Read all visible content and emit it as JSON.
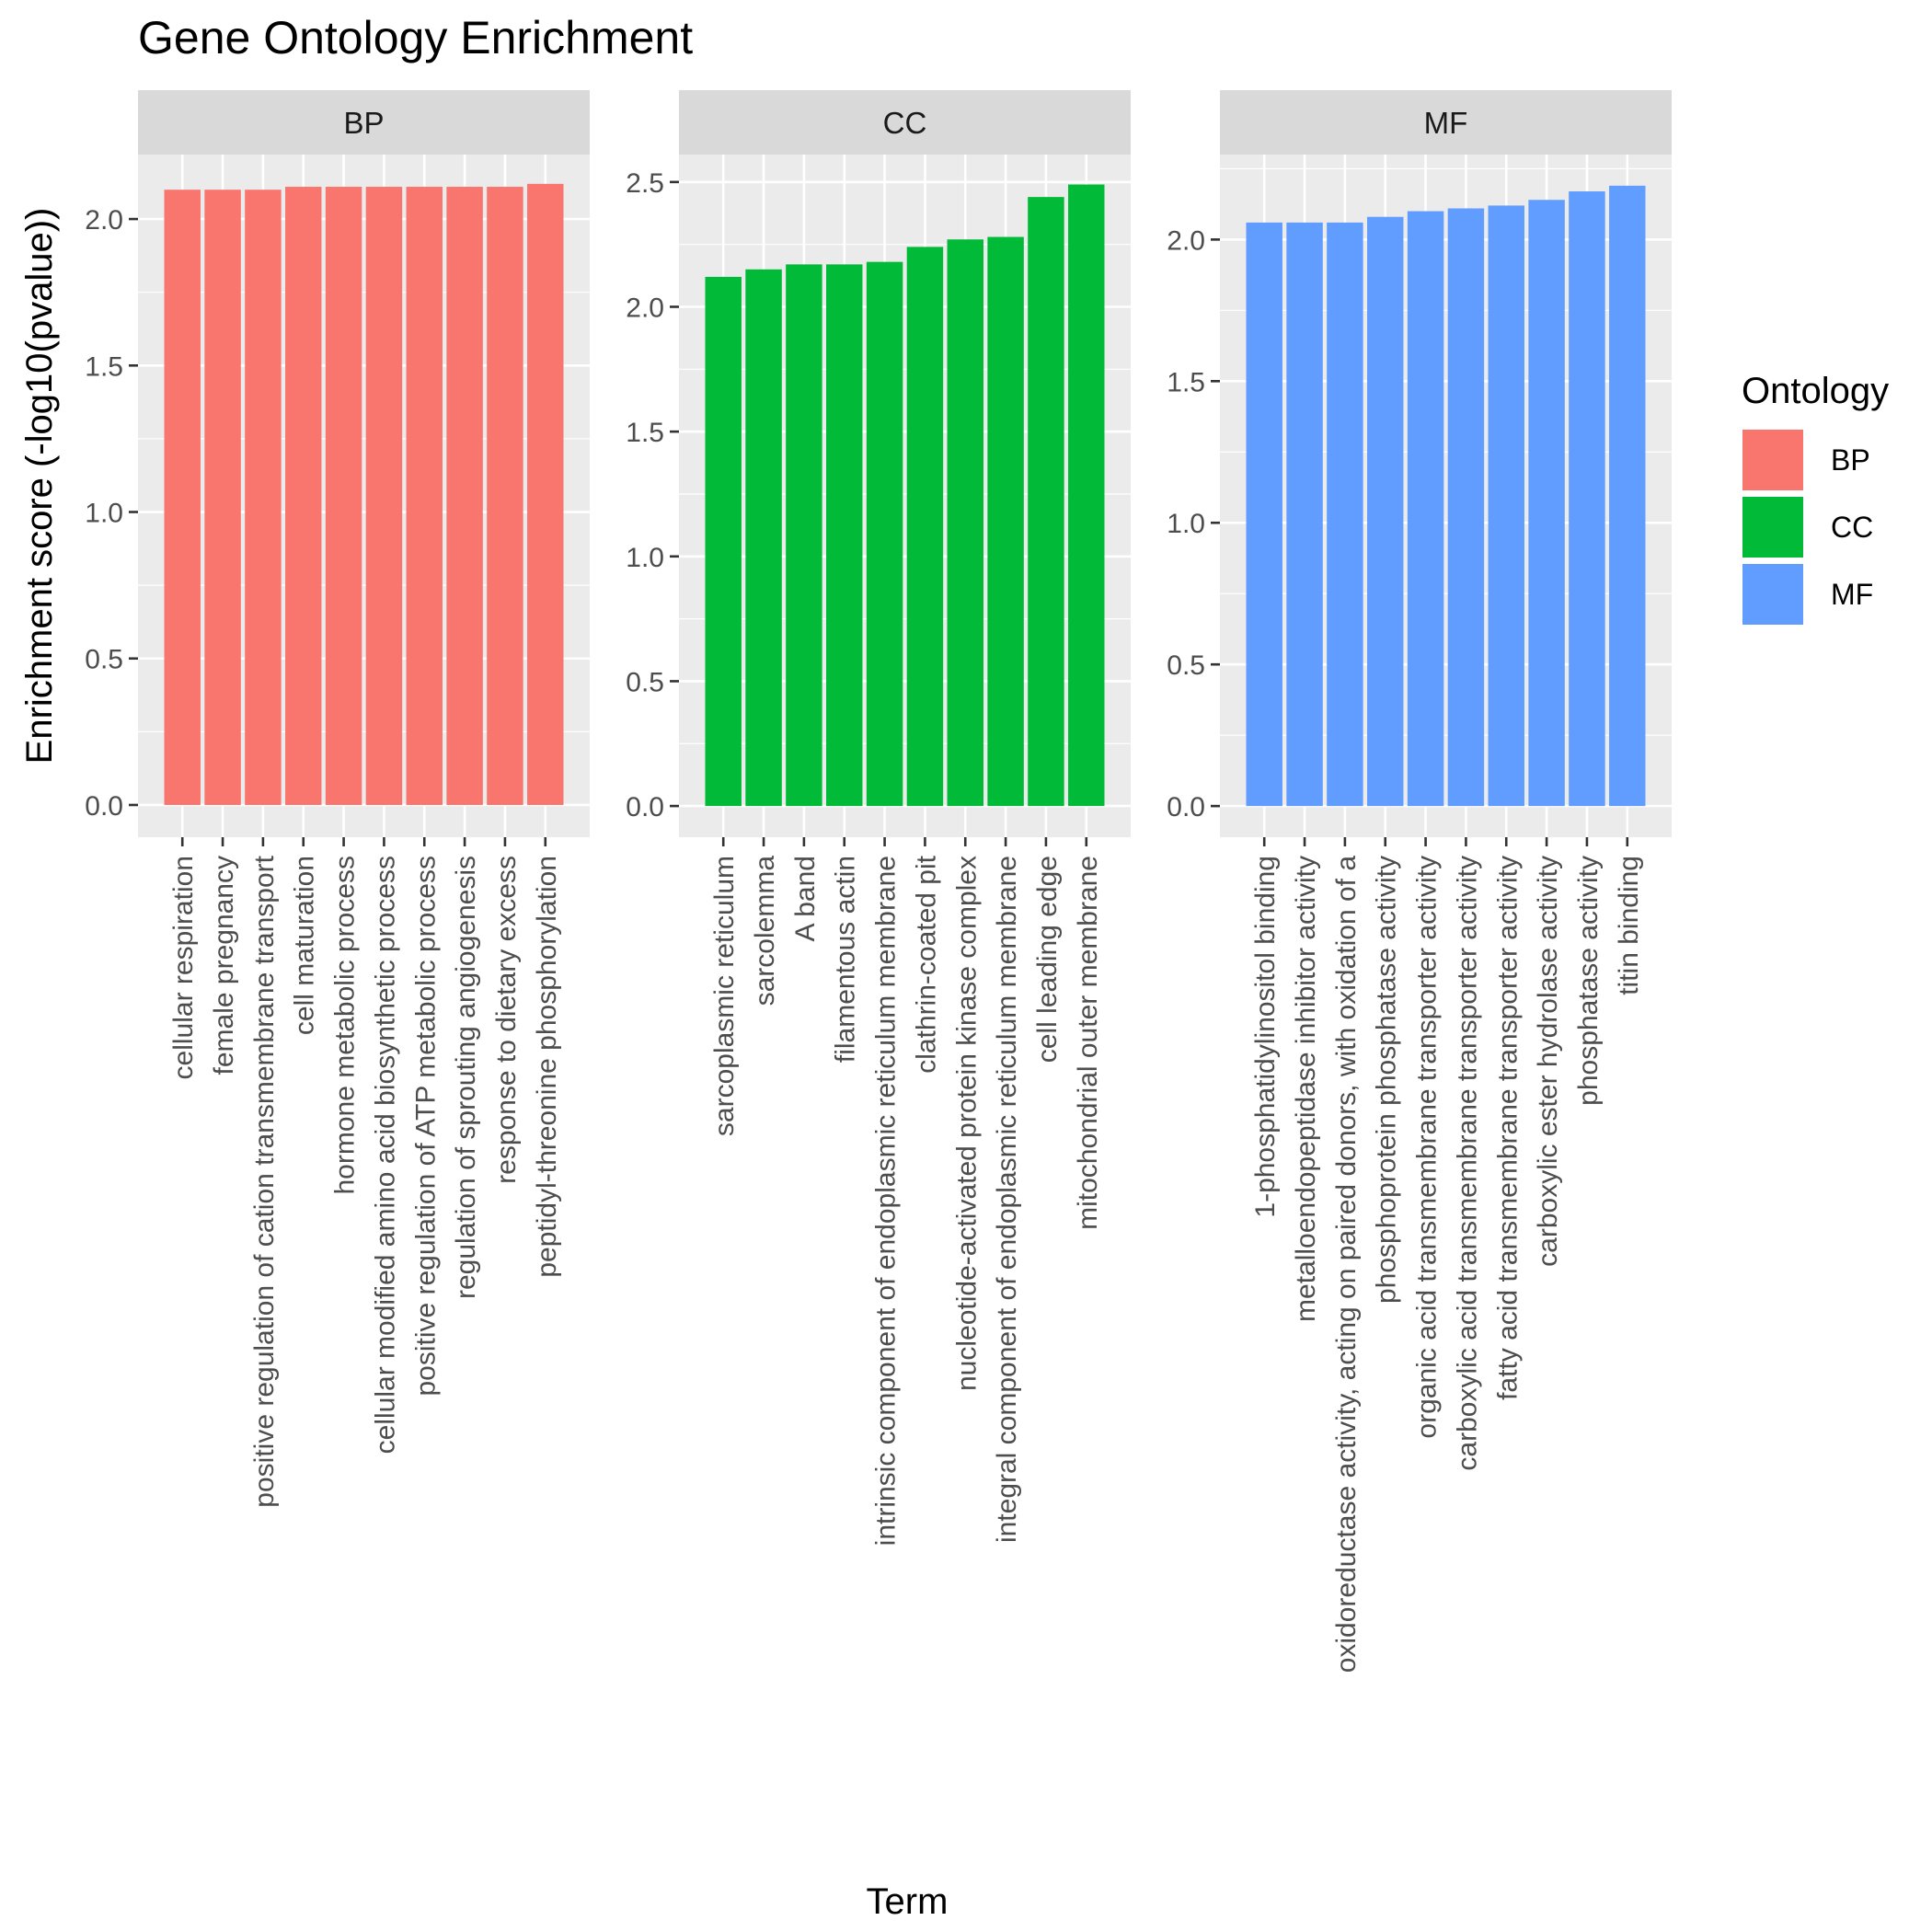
{
  "chart_data": {
    "type": "bar",
    "title": "Gene Ontology Enrichment",
    "xlabel": "Term",
    "ylabel": "Enrichment score (-log10(pvalue))",
    "legend": {
      "title": "Ontology",
      "placement": "right",
      "entries": [
        {
          "label": "BP",
          "color": "#F8766D"
        },
        {
          "label": "CC",
          "color": "#00BA38"
        },
        {
          "label": "MF",
          "color": "#619CFF"
        }
      ]
    },
    "grid": true,
    "panels": [
      {
        "facet": "BP",
        "color": "#F8766D",
        "ylim": [
          -0.11,
          2.22
        ],
        "yticks": [
          "0.0",
          "0.5",
          "1.0",
          "1.5",
          "2.0"
        ],
        "categories": [
          "cellular respiration",
          "female pregnancy",
          "positive regulation of cation transmembrane transport",
          "cell maturation",
          "hormone metabolic process",
          "cellular modified amino acid biosynthetic process",
          "positive regulation of ATP metabolic process",
          "regulation of sprouting angiogenesis",
          "response to dietary excess",
          "peptidyl-threonine phosphorylation"
        ],
        "values": [
          2.1,
          2.1,
          2.1,
          2.11,
          2.11,
          2.11,
          2.11,
          2.11,
          2.11,
          2.12
        ]
      },
      {
        "facet": "CC",
        "color": "#00BA38",
        "ylim": [
          -0.125,
          2.61
        ],
        "yticks": [
          "0.0",
          "0.5",
          "1.0",
          "1.5",
          "2.0",
          "2.5"
        ],
        "categories": [
          "sarcoplasmic reticulum",
          "sarcolemma",
          "A band",
          "filamentous actin",
          "intrinsic component of endoplasmic reticulum membrane",
          "clathrin-coated pit",
          "nucleotide-activated protein kinase complex",
          "integral component of endoplasmic reticulum membrane",
          "cell leading edge",
          "mitochondrial outer membrane"
        ],
        "values": [
          2.12,
          2.15,
          2.17,
          2.17,
          2.18,
          2.24,
          2.27,
          2.28,
          2.44,
          2.49
        ]
      },
      {
        "facet": "MF",
        "color": "#619CFF",
        "ylim": [
          -0.11,
          2.3
        ],
        "yticks": [
          "0.0",
          "0.5",
          "1.0",
          "1.5",
          "2.0"
        ],
        "categories": [
          "1-phosphatidylinositol binding",
          "metalloendopeptidase inhibitor activity",
          "oxidoreductase activity, acting on paired donors, with oxidation of a",
          "phosphoprotein phosphatase activity",
          "organic acid transmembrane transporter activity",
          "carboxylic acid transmembrane transporter activity",
          "fatty acid transmembrane transporter activity",
          "carboxylic ester hydrolase activity",
          "phosphatase activity",
          "titin binding"
        ],
        "values": [
          2.06,
          2.06,
          2.06,
          2.08,
          2.1,
          2.11,
          2.12,
          2.14,
          2.17,
          2.19
        ]
      }
    ]
  }
}
